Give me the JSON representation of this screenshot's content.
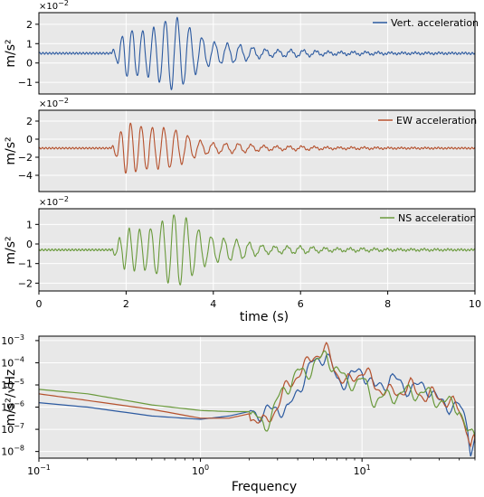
{
  "colors": {
    "vertical": "#2c5aa0",
    "ew": "#b5512d",
    "ns": "#6a9a3c",
    "background": "#e8e8e8",
    "grid": "#ffffff"
  },
  "chart_data": [
    {
      "type": "line",
      "series": [
        {
          "name": "Vert. acceleration"
        }
      ],
      "x": {
        "ticks": [
          "0",
          "2",
          "4",
          "6",
          "8",
          "10"
        ]
      },
      "y": {
        "label": "m/s²",
        "ticks": [
          "−1",
          "0",
          "1",
          "2"
        ],
        "multiplier": "×10",
        "exponent": "−2"
      },
      "xlim": [
        0,
        10
      ],
      "ylim": [
        -1.6,
        2.6
      ],
      "grid": true,
      "legend": "top-right",
      "baseline": 0.5,
      "onset": 1.65,
      "peak": 1.95,
      "peak_time": 3.05
    },
    {
      "type": "line",
      "series": [
        {
          "name": "EW acceleration"
        }
      ],
      "x": {
        "ticks": [
          "0",
          "2",
          "4",
          "6",
          "8",
          "10"
        ]
      },
      "y": {
        "label": "m/s²",
        "ticks": [
          "−4",
          "−2",
          "0",
          "2"
        ],
        "multiplier": "×10",
        "exponent": "−2"
      },
      "xlim": [
        0,
        10
      ],
      "ylim": [
        -5.8,
        3.2
      ],
      "grid": true,
      "legend": "top-right",
      "baseline": -1.0,
      "onset": 1.65,
      "peak": 3.4,
      "peak_time": 2.5
    },
    {
      "type": "line",
      "series": [
        {
          "name": "NS acceleration"
        }
      ],
      "x": {
        "label": "time (s)",
        "ticks": [
          "0",
          "2",
          "4",
          "6",
          "8",
          "10"
        ]
      },
      "y": {
        "label": "m/s²",
        "ticks": [
          "−2",
          "−1",
          "0",
          "1"
        ],
        "multiplier": "×10",
        "exponent": "−2"
      },
      "xlim": [
        0,
        10
      ],
      "ylim": [
        -2.4,
        1.8
      ],
      "grid": true,
      "legend": "top-right",
      "baseline": -0.3,
      "onset": 1.65,
      "peak": 1.85,
      "peak_time": 3.2
    },
    {
      "type": "line",
      "x": {
        "label": "Frequency",
        "scale": "log",
        "ticks": [
          {
            "base": "10",
            "exp": "−1"
          },
          {
            "base": "10",
            "exp": "0"
          },
          {
            "base": "10",
            "exp": "1"
          }
        ]
      },
      "y": {
        "label": "m/s²/√Hz",
        "scale": "log",
        "ticks": [
          {
            "base": "10",
            "exp": "−3"
          },
          {
            "base": "10",
            "exp": "−4"
          },
          {
            "base": "10",
            "exp": "−5"
          },
          {
            "base": "10",
            "exp": "−6"
          },
          {
            "base": "10",
            "exp": "−7"
          },
          {
            "base": "10",
            "exp": "−8"
          }
        ]
      },
      "xlim": [
        0.1,
        50
      ],
      "ylim_log10": [
        -8.3,
        -2.8
      ],
      "grid": true,
      "series": [
        {
          "component": "vertical",
          "points": [
            [
              0.1,
              -5.8
            ],
            [
              0.2,
              -6.0
            ],
            [
              0.5,
              -6.4
            ],
            [
              1.0,
              -6.55
            ],
            [
              1.5,
              -6.4
            ],
            [
              2.0,
              -6.2
            ],
            [
              2.5,
              -6.3
            ],
            [
              3.0,
              -6.0
            ],
            [
              3.5,
              -6.2
            ],
            [
              4.0,
              -5.2
            ],
            [
              5.0,
              -4.0
            ],
            [
              6.0,
              -3.6
            ],
            [
              7.0,
              -4.8
            ],
            [
              8.0,
              -4.8
            ],
            [
              10.0,
              -4.3
            ],
            [
              12.0,
              -5.2
            ],
            [
              15.0,
              -4.7
            ],
            [
              20.0,
              -5.2
            ],
            [
              25.0,
              -5.0
            ],
            [
              30.0,
              -5.8
            ],
            [
              40.0,
              -6.0
            ],
            [
              45.0,
              -6.8
            ],
            [
              47.0,
              -7.8
            ],
            [
              50.0,
              -7.5
            ]
          ]
        },
        {
          "component": "ew",
          "points": [
            [
              0.1,
              -5.4
            ],
            [
              0.2,
              -5.7
            ],
            [
              0.5,
              -6.1
            ],
            [
              1.0,
              -6.5
            ],
            [
              1.5,
              -6.5
            ],
            [
              2.0,
              -6.3
            ],
            [
              2.5,
              -6.8
            ],
            [
              3.0,
              -5.9
            ],
            [
              3.5,
              -5.0
            ],
            [
              4.0,
              -4.5
            ],
            [
              4.5,
              -4.2
            ],
            [
              5.0,
              -3.6
            ],
            [
              6.0,
              -3.5
            ],
            [
              6.5,
              -3.9
            ],
            [
              7.0,
              -4.4
            ],
            [
              8.0,
              -5.0
            ],
            [
              10.0,
              -4.3
            ],
            [
              12.0,
              -5.0
            ],
            [
              15.0,
              -5.4
            ],
            [
              20.0,
              -5.1
            ],
            [
              25.0,
              -5.5
            ],
            [
              30.0,
              -5.5
            ],
            [
              40.0,
              -6.1
            ],
            [
              45.0,
              -7.0
            ],
            [
              47.0,
              -7.8
            ],
            [
              50.0,
              -7.6
            ]
          ]
        },
        {
          "component": "ns",
          "points": [
            [
              0.1,
              -5.2
            ],
            [
              0.2,
              -5.4
            ],
            [
              0.5,
              -5.9
            ],
            [
              1.0,
              -6.15
            ],
            [
              1.5,
              -6.2
            ],
            [
              2.0,
              -6.2
            ],
            [
              2.5,
              -6.9
            ],
            [
              3.0,
              -5.7
            ],
            [
              3.5,
              -5.0
            ],
            [
              4.0,
              -4.4
            ],
            [
              4.5,
              -4.6
            ],
            [
              5.0,
              -4.0
            ],
            [
              5.5,
              -3.9
            ],
            [
              6.0,
              -3.7
            ],
            [
              7.0,
              -4.3
            ],
            [
              8.0,
              -4.9
            ],
            [
              10.0,
              -4.8
            ],
            [
              12.0,
              -5.7
            ],
            [
              15.0,
              -5.5
            ],
            [
              20.0,
              -5.3
            ],
            [
              25.0,
              -5.4
            ],
            [
              30.0,
              -5.7
            ],
            [
              40.0,
              -6.0
            ],
            [
              45.0,
              -7.2
            ],
            [
              47.0,
              -7.4
            ],
            [
              50.0,
              -7.2
            ]
          ]
        }
      ]
    }
  ]
}
